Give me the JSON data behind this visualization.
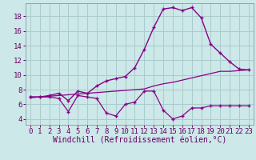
{
  "xlabel": "Windchill (Refroidissement éolien,°C)",
  "background_color": "#cce8e8",
  "grid_color": "#aacccc",
  "line_color": "#880088",
  "x_ticks": [
    0,
    1,
    2,
    3,
    4,
    5,
    6,
    7,
    8,
    9,
    10,
    11,
    12,
    13,
    14,
    15,
    16,
    17,
    18,
    19,
    20,
    21,
    22,
    23
  ],
  "y_ticks": [
    4,
    6,
    8,
    10,
    12,
    14,
    16,
    18
  ],
  "xlim": [
    -0.5,
    23.5
  ],
  "ylim": [
    3.2,
    19.8
  ],
  "series1_x": [
    0,
    1,
    2,
    3,
    4,
    5,
    6,
    7,
    8,
    9,
    10,
    11,
    12,
    13,
    14,
    15,
    16,
    17,
    18,
    19,
    20,
    21,
    22,
    23
  ],
  "series1_y": [
    7.0,
    7.0,
    7.0,
    6.8,
    5.0,
    7.2,
    7.0,
    6.8,
    4.8,
    4.4,
    6.0,
    6.3,
    7.8,
    7.8,
    5.2,
    4.0,
    4.4,
    5.5,
    5.5,
    5.8,
    5.8,
    5.8,
    5.8,
    5.8
  ],
  "series2_x": [
    0,
    1,
    2,
    3,
    4,
    5,
    6,
    7,
    8,
    9,
    10,
    11,
    12,
    13,
    14,
    15,
    16,
    17,
    18,
    19,
    20,
    21,
    22,
    23
  ],
  "series2_y": [
    6.9,
    7.0,
    7.1,
    7.2,
    7.3,
    7.4,
    7.5,
    7.6,
    7.7,
    7.8,
    7.9,
    8.0,
    8.1,
    8.5,
    8.8,
    9.0,
    9.3,
    9.6,
    9.9,
    10.2,
    10.5,
    10.5,
    10.6,
    10.7
  ],
  "series3_x": [
    0,
    1,
    2,
    3,
    4,
    5,
    6,
    7,
    8,
    9,
    10,
    11,
    12,
    13,
    14,
    15,
    16,
    17,
    18,
    19,
    20,
    21,
    22,
    23
  ],
  "series3_y": [
    7.0,
    7.0,
    7.2,
    7.5,
    6.5,
    7.8,
    7.5,
    8.5,
    9.2,
    9.5,
    9.8,
    11.0,
    13.5,
    16.5,
    19.0,
    19.2,
    18.8,
    19.2,
    17.8,
    14.2,
    13.0,
    11.8,
    10.8,
    10.7
  ],
  "font_family": "monospace",
  "tick_fontsize": 6.5,
  "label_fontsize": 7.0,
  "text_color": "#660066"
}
